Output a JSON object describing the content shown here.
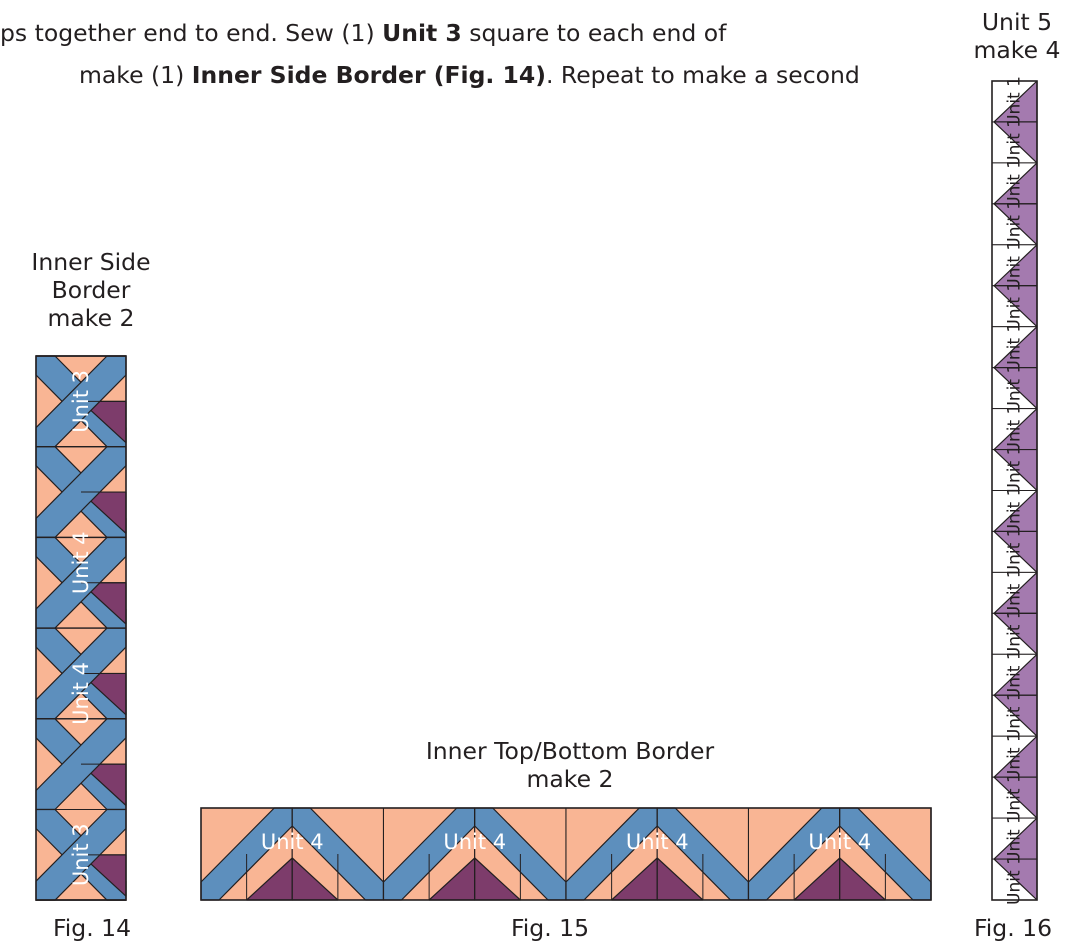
{
  "instructions": {
    "line1": {
      "pre": "ps together end to end. Sew (1) ",
      "bold1": "Unit 3",
      "post": " square to each end of"
    },
    "line2": {
      "pre": "make (1) ",
      "bold1": "Inner Side Border (Fig. 14)",
      "post": ". Repeat to make a second"
    }
  },
  "fig14": {
    "title_lines": [
      "Inner Side",
      "Border",
      "make 2"
    ],
    "caption": "Fig. 14",
    "block_labels": [
      "Unit 3",
      "Unit 4",
      "Unit 4",
      "Unit 3"
    ]
  },
  "fig15": {
    "title_lines": [
      "Inner Top/Bottom Border",
      "make 2"
    ],
    "caption": "Fig. 15",
    "block_labels": [
      "Unit 4",
      "Unit 4",
      "Unit 4",
      "Unit 4"
    ]
  },
  "fig16": {
    "title_lines": [
      "Unit 5",
      "make 4"
    ],
    "caption": "Fig. 16",
    "unit_label": "Unit 1",
    "unit_count": 20
  },
  "colors": {
    "peach": "#f9b594",
    "blue": "#5d8fbd",
    "plum": "#7d3c6b",
    "lavender": "#a47aaf",
    "outline": "#231f20"
  }
}
